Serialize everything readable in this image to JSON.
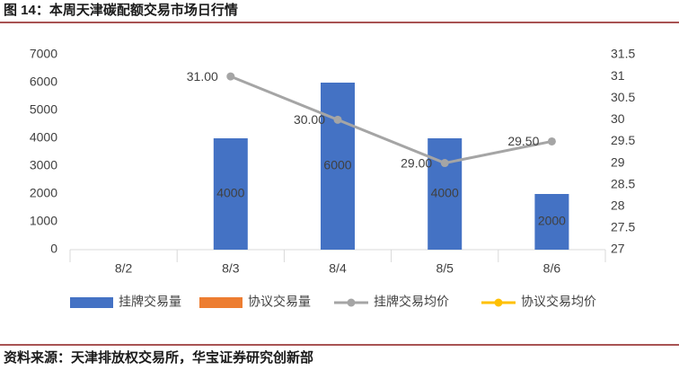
{
  "chart_data": {
    "type": "bar-line",
    "title": "图 14：本周天津碳配额交易市场日行情",
    "source": "资料来源：天津排放权交易所，华宝证券研究创新部",
    "categories": [
      "8/2",
      "8/3",
      "8/4",
      "8/5",
      "8/6"
    ],
    "series": [
      {
        "name": "挂牌交易量",
        "color": "#4472c4",
        "type": "bar",
        "values": [
          null,
          4000,
          6000,
          4000,
          2000
        ]
      },
      {
        "name": "协议交易量",
        "color": "#ed7d31",
        "type": "bar",
        "values": [
          null,
          null,
          null,
          null,
          null
        ]
      },
      {
        "name": "挂牌交易均价",
        "color": "#a5a5a5",
        "type": "line",
        "axis": "y2",
        "values": [
          null,
          31,
          30,
          29,
          29.5
        ],
        "value_labels": [
          null,
          "31.00",
          "30.00",
          "29.00",
          "29.50"
        ]
      },
      {
        "name": "协议交易均价",
        "color": "#ffc000",
        "type": "line",
        "axis": "y2",
        "values": [
          null,
          null,
          null,
          null,
          null
        ]
      }
    ],
    "ylim": [
      0,
      7000
    ],
    "yticks": [
      0,
      1000,
      2000,
      3000,
      4000,
      5000,
      6000,
      7000
    ],
    "y2lim": [
      27,
      31.5
    ],
    "y2ticks": [
      27,
      27.5,
      28,
      28.5,
      29,
      29.5,
      30,
      30.5,
      31,
      31.5
    ],
    "grid": false,
    "legend": "bottom"
  }
}
